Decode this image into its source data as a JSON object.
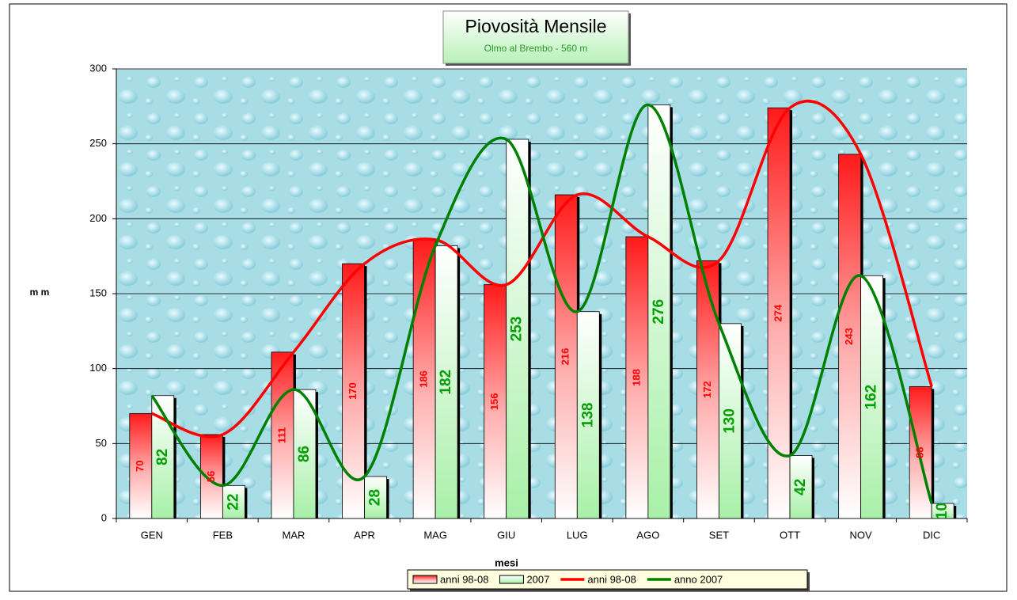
{
  "chart_data": {
    "type": "bar_line",
    "title": "Piovosità Mensile",
    "subtitle": "Olmo al Brembo - 560 m",
    "x_label": "mesi",
    "y_label": "m m",
    "categories": [
      "GEN",
      "FEB",
      "MAR",
      "APR",
      "MAG",
      "GIU",
      "LUG",
      "AGO",
      "SET",
      "OTT",
      "NOV",
      "DIC"
    ],
    "series": [
      {
        "name": "anni 98-08",
        "kind": "bar",
        "color": "#ff0000",
        "values": [
          70,
          56,
          111,
          170,
          186,
          156,
          216,
          188,
          172,
          274,
          243,
          88
        ]
      },
      {
        "name": "2007",
        "kind": "bar",
        "color": "#00a000",
        "values": [
          82,
          22,
          86,
          28,
          182,
          253,
          138,
          276,
          130,
          42,
          162,
          10
        ]
      },
      {
        "name": "anni 98-08",
        "kind": "line",
        "color": "#ff0000",
        "values": [
          70,
          56,
          111,
          170,
          186,
          156,
          216,
          188,
          172,
          274,
          243,
          88
        ]
      },
      {
        "name": "anno 2007",
        "kind": "line",
        "color": "#008000",
        "values": [
          82,
          22,
          86,
          28,
          182,
          253,
          138,
          276,
          130,
          42,
          162,
          10
        ]
      }
    ],
    "ylim": [
      0,
      300
    ],
    "yticks": [
      0,
      50,
      100,
      150,
      200,
      250,
      300
    ],
    "grid": true,
    "legend": "bottom"
  }
}
